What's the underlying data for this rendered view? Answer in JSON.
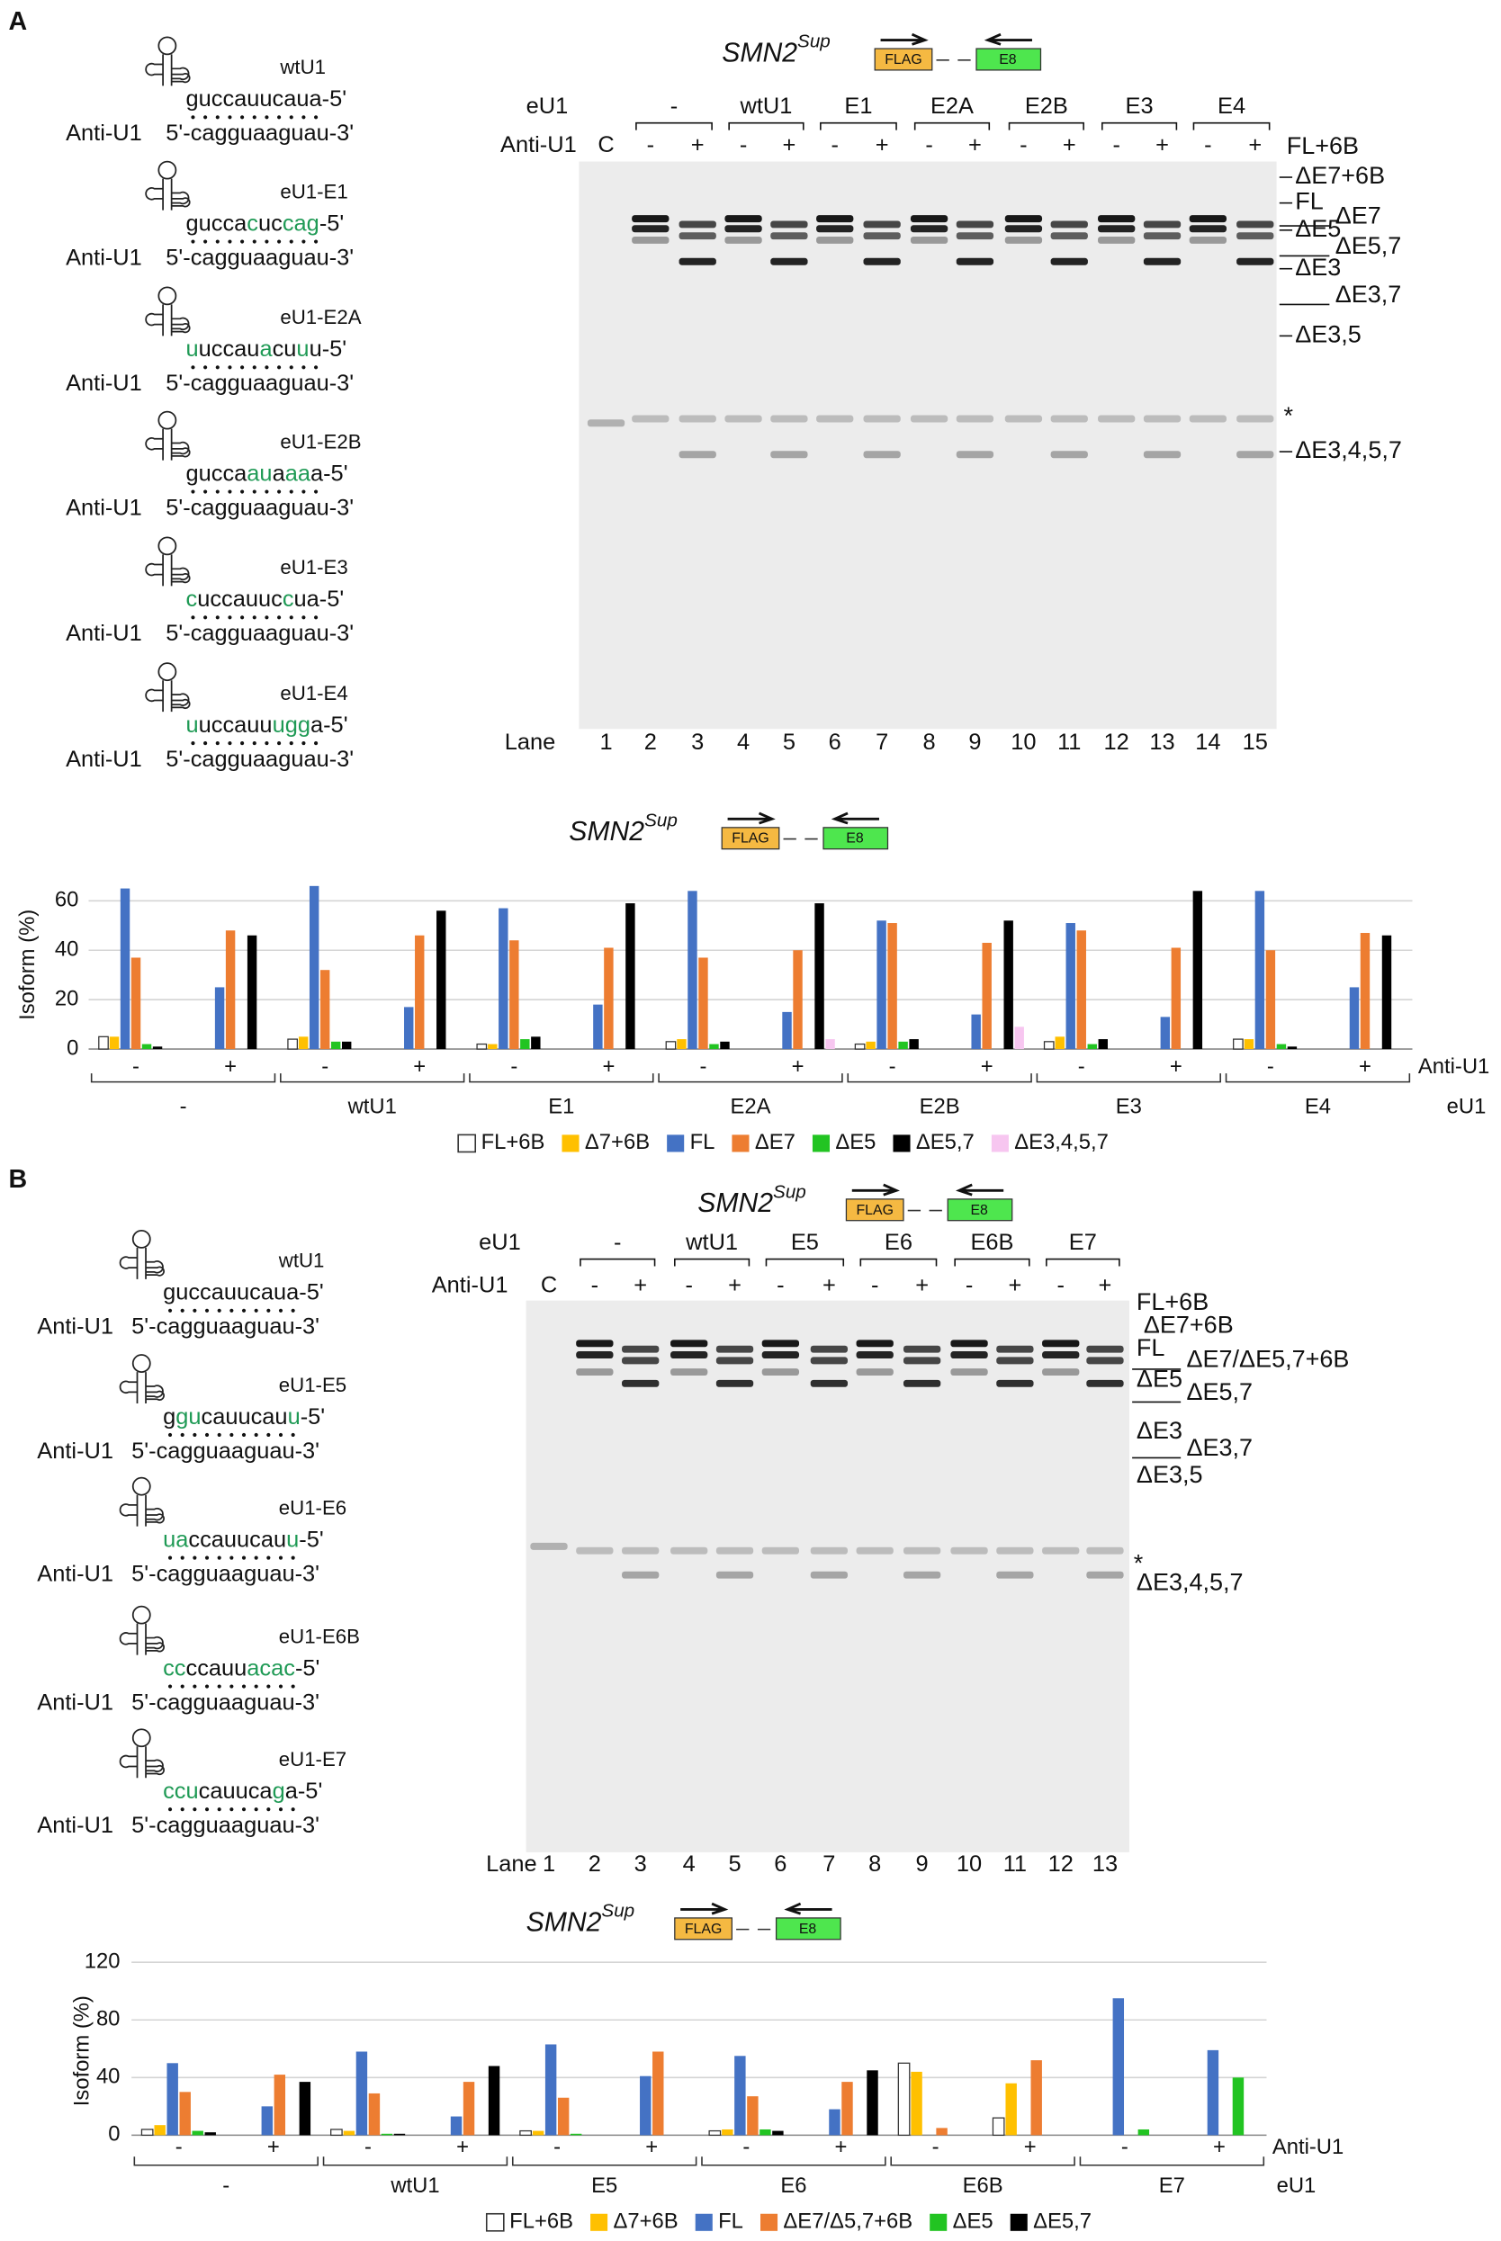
{
  "panel_labels": [
    "A",
    "B"
  ],
  "construct": {
    "name": "SMN2",
    "superscript": "Sup",
    "forward": "FLAG",
    "reverse": "E8"
  },
  "gels": [
    {
      "eu1_label": "eU1",
      "anti_label": "Anti-U1",
      "lane_label": "Lane",
      "control": "C",
      "groups": [
        "-",
        "wtU1",
        "E1",
        "E2A",
        "E2B",
        "E3",
        "E4"
      ],
      "treatments": [
        "-",
        "+",
        "-",
        "+",
        "-",
        "+",
        "-",
        "+",
        "-",
        "+",
        "-",
        "+",
        "-",
        "+"
      ],
      "lanes": [
        1,
        2,
        3,
        4,
        5,
        6,
        7,
        8,
        9,
        10,
        11,
        12,
        13,
        14,
        15
      ],
      "isoforms": [
        "FL+6B",
        "ΔE7+6B",
        "FL",
        "ΔE7",
        "ΔE5",
        "ΔE5,7",
        "ΔE3",
        "ΔE3,7",
        "ΔE3,5",
        "*",
        "ΔE3,4,5,7"
      ]
    },
    {
      "eu1_label": "eU1",
      "anti_label": "Anti-U1",
      "lane_label": "Lane",
      "control": "C",
      "groups": [
        "-",
        "wtU1",
        "E5",
        "E6",
        "E6B",
        "E7"
      ],
      "treatments": [
        "-",
        "+",
        "-",
        "+",
        "-",
        "+",
        "-",
        "+",
        "-",
        "+",
        "-",
        "+"
      ],
      "lanes": [
        1,
        2,
        3,
        4,
        5,
        6,
        7,
        8,
        9,
        10,
        11,
        12,
        13
      ],
      "isoforms": [
        "FL+6B",
        "ΔE7+6B",
        "FL",
        "ΔE7/ΔE5,7+6B",
        "ΔE5",
        "ΔE5,7",
        "ΔE3",
        "ΔE3,7",
        "ΔE3,5",
        "*",
        "ΔE3,4,5,7"
      ]
    }
  ],
  "u1_panels": [
    {
      "strand_label": "Anti-U1",
      "target": "5'-cagguaaguau-3'",
      "constructs": [
        {
          "name": "wtU1",
          "sequence": [
            {
              "text": "guccauucaua-5'"
            }
          ]
        },
        {
          "name": "eU1-E1",
          "sequence": [
            {
              "text": "gucca"
            },
            {
              "text": "c",
              "color": "#1f9a55"
            },
            {
              "text": "uc"
            },
            {
              "text": "cag",
              "color": "#1f9a55"
            },
            {
              "text": "-5'"
            }
          ]
        },
        {
          "name": "eU1-E2A",
          "sequence": [
            {
              "text": "u",
              "color": "#1f9a55"
            },
            {
              "text": "uccau"
            },
            {
              "text": "a",
              "color": "#1f9a55"
            },
            {
              "text": "cu"
            },
            {
              "text": "u",
              "color": "#1f9a55"
            },
            {
              "text": "u-5'"
            }
          ]
        },
        {
          "name": "eU1-E2B",
          "sequence": [
            {
              "text": "gucca"
            },
            {
              "text": "au",
              "color": "#1f9a55"
            },
            {
              "text": "a"
            },
            {
              "text": "aa",
              "color": "#1f9a55"
            },
            {
              "text": "a-5'"
            }
          ]
        },
        {
          "name": "eU1-E3",
          "sequence": [
            {
              "text": "c",
              "color": "#1f9a55"
            },
            {
              "text": "uccauuc"
            },
            {
              "text": "c",
              "color": "#1f9a55"
            },
            {
              "text": "ua-5'"
            }
          ]
        },
        {
          "name": "eU1-E4",
          "sequence": [
            {
              "text": "u",
              "color": "#1f9a55"
            },
            {
              "text": "uccauu"
            },
            {
              "text": "ugg",
              "color": "#1f9a55"
            },
            {
              "text": "a-5'"
            }
          ]
        }
      ]
    },
    {
      "strand_label": "Anti-U1",
      "target": "5'-cagguaaguau-3'",
      "constructs": [
        {
          "name": "wtU1",
          "sequence": [
            {
              "text": "guccauucaua-5'"
            }
          ]
        },
        {
          "name": "eU1-E5",
          "sequence": [
            {
              "text": "g"
            },
            {
              "text": "gu",
              "color": "#1f9a55"
            },
            {
              "text": "cauucau"
            },
            {
              "text": "u",
              "color": "#1f9a55"
            },
            {
              "text": "-5'"
            }
          ]
        },
        {
          "name": "eU1-E6",
          "sequence": [
            {
              "text": "ua",
              "color": "#1f9a55"
            },
            {
              "text": "ccauucau"
            },
            {
              "text": "u",
              "color": "#1f9a55"
            },
            {
              "text": "-5'"
            }
          ]
        },
        {
          "name": "eU1-E6B",
          "sequence": [
            {
              "text": "cc",
              "color": "#1f9a55"
            },
            {
              "text": "ccauu"
            },
            {
              "text": "acac",
              "color": "#1f9a55"
            },
            {
              "text": "-5'"
            }
          ]
        },
        {
          "name": "eU1-E7",
          "sequence": [
            {
              "text": "ccu",
              "color": "#1f9a55"
            },
            {
              "text": "cauuca"
            },
            {
              "text": "g",
              "color": "#1f9a55"
            },
            {
              "text": "a-5'"
            }
          ]
        }
      ]
    }
  ],
  "chart_data": [
    {
      "type": "bar",
      "ylabel": "Isoform (%)",
      "xlabel": "Anti-U1",
      "group_label": "eU1",
      "categories": [
        "-",
        "+",
        "-",
        "+",
        "-",
        "+",
        "-",
        "+",
        "-",
        "+",
        "-",
        "+",
        "-",
        "+"
      ],
      "groups": [
        "-",
        "wtU1",
        "E1",
        "E2A",
        "E2B",
        "E3",
        "E4"
      ],
      "ylim": [
        0,
        70
      ],
      "yticks": [
        0,
        20,
        40,
        60
      ],
      "grid": true,
      "series": [
        {
          "name": "FL+6B",
          "color": "#ffffff",
          "values": [
            5,
            0,
            4,
            0,
            2,
            0,
            3,
            0,
            2,
            0,
            3,
            0,
            4,
            0
          ]
        },
        {
          "name": "Δ7+6B",
          "color": "#ffc000",
          "values": [
            5,
            0,
            5,
            0,
            2,
            0,
            4,
            0,
            3,
            0,
            5,
            0,
            4,
            0
          ]
        },
        {
          "name": "FL",
          "color": "#4472c4",
          "values": [
            65,
            25,
            66,
            17,
            57,
            18,
            64,
            15,
            52,
            14,
            51,
            13,
            64,
            25
          ]
        },
        {
          "name": "ΔE7",
          "color": "#ed7d31",
          "values": [
            37,
            48,
            32,
            46,
            44,
            41,
            37,
            40,
            51,
            43,
            48,
            41,
            40,
            47
          ]
        },
        {
          "name": "ΔE5",
          "color": "#22c422",
          "values": [
            2,
            0,
            3,
            0,
            4,
            0,
            2,
            0,
            3,
            0,
            2,
            0,
            2,
            0
          ]
        },
        {
          "name": "ΔE5,7",
          "color": "#000000",
          "values": [
            1,
            46,
            3,
            56,
            5,
            59,
            3,
            59,
            4,
            52,
            4,
            64,
            1,
            46
          ]
        },
        {
          "name": "ΔE3,4,5,7",
          "color": "#f7c6f0",
          "values": [
            0,
            0,
            0,
            0,
            0,
            0,
            0,
            4,
            0,
            9,
            0,
            0,
            0,
            0
          ]
        }
      ]
    },
    {
      "type": "bar",
      "ylabel": "Isoform (%)",
      "xlabel": "Anti-U1",
      "group_label": "eU1",
      "categories": [
        "-",
        "+",
        "-",
        "+",
        "-",
        "+",
        "-",
        "+",
        "-",
        "+",
        "-",
        "+"
      ],
      "groups": [
        "-",
        "wtU1",
        "E5",
        "E6",
        "E6B",
        "E7"
      ],
      "ylim": [
        0,
        120
      ],
      "yticks": [
        0,
        40,
        80,
        120
      ],
      "grid": true,
      "series": [
        {
          "name": "FL+6B",
          "color": "#ffffff",
          "values": [
            4,
            0,
            4,
            0,
            3,
            0,
            3,
            0,
            50,
            12,
            0,
            0
          ]
        },
        {
          "name": "Δ7+6B",
          "color": "#ffc000",
          "values": [
            7,
            0,
            3,
            0,
            3,
            0,
            4,
            0,
            44,
            36,
            0,
            0
          ]
        },
        {
          "name": "FL",
          "color": "#4472c4",
          "values": [
            50,
            20,
            58,
            13,
            63,
            41,
            55,
            18,
            0,
            0,
            95,
            59
          ]
        },
        {
          "name": "ΔE7/Δ5,7+6B",
          "color": "#ed7d31",
          "values": [
            30,
            42,
            29,
            37,
            26,
            58,
            27,
            37,
            5,
            52,
            0,
            0
          ]
        },
        {
          "name": "ΔE5",
          "color": "#22c422",
          "values": [
            3,
            0,
            1,
            0,
            1,
            0,
            4,
            0,
            0,
            0,
            4,
            40
          ]
        },
        {
          "name": "ΔE5,7",
          "color": "#000000",
          "values": [
            2,
            37,
            1,
            48,
            0,
            0,
            3,
            45,
            0,
            0,
            0,
            0
          ]
        }
      ]
    }
  ]
}
